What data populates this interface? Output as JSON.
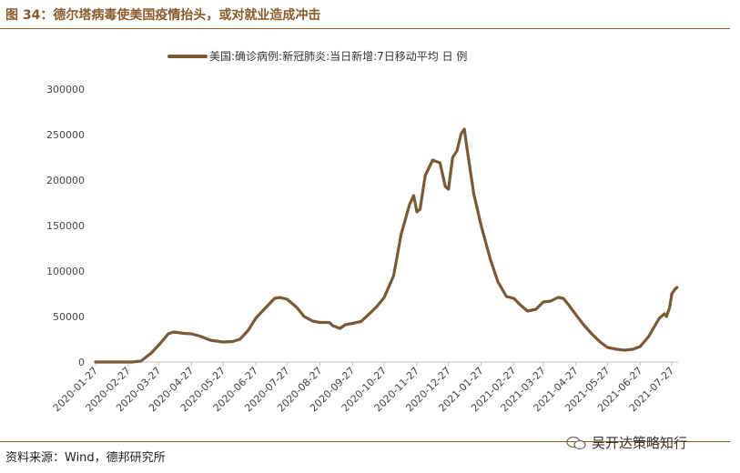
{
  "figure": {
    "title": "图 34：德尔塔病毒使美国疫情抬头，或对就业造成冲击",
    "source": "资料来源：Wind，德邦研究所",
    "watermark": "吴开达策略知行"
  },
  "colors": {
    "accent": "#8a5a2b",
    "series": "#7a5a34",
    "axis": "#bfbfbf"
  },
  "chart_data": {
    "type": "line",
    "xlabel": "",
    "ylabel": "",
    "ylim": [
      0,
      300000
    ],
    "yticks": [
      0,
      50000,
      100000,
      150000,
      200000,
      250000,
      300000
    ],
    "xticks": [
      "2020-01-27",
      "2020-02-27",
      "2020-03-27",
      "2020-04-27",
      "2020-05-27",
      "2020-06-27",
      "2020-07-27",
      "2020-08-27",
      "2020-09-27",
      "2020-10-27",
      "2020-11-27",
      "2020-12-27",
      "2021-01-27",
      "2021-02-27",
      "2021-03-27",
      "2021-04-27",
      "2021-05-27",
      "2021-06-27",
      "2021-07-27"
    ],
    "xlim": [
      "2020-01-27",
      "2021-08-02"
    ],
    "grid": false,
    "legend_position": "top",
    "series": [
      {
        "name": "美国:确诊病例:新冠肺炎:当日新增:7日移动平均  日  例",
        "x": [
          "2020-01-27",
          "2020-03-01",
          "2020-03-10",
          "2020-03-20",
          "2020-03-28",
          "2020-04-05",
          "2020-04-10",
          "2020-04-20",
          "2020-04-27",
          "2020-05-05",
          "2020-05-15",
          "2020-05-27",
          "2020-06-05",
          "2020-06-12",
          "2020-06-20",
          "2020-06-27",
          "2020-07-05",
          "2020-07-15",
          "2020-07-20",
          "2020-07-27",
          "2020-08-05",
          "2020-08-12",
          "2020-08-20",
          "2020-08-27",
          "2020-09-05",
          "2020-09-08",
          "2020-09-15",
          "2020-09-20",
          "2020-09-27",
          "2020-10-05",
          "2020-10-12",
          "2020-10-20",
          "2020-10-27",
          "2020-11-05",
          "2020-11-12",
          "2020-11-20",
          "2020-11-24",
          "2020-11-27",
          "2020-11-30",
          "2020-12-05",
          "2020-12-12",
          "2020-12-19",
          "2020-12-24",
          "2020-12-27",
          "2020-12-31",
          "2021-01-04",
          "2021-01-08",
          "2021-01-11",
          "2021-01-14",
          "2021-01-20",
          "2021-01-27",
          "2021-02-05",
          "2021-02-12",
          "2021-02-20",
          "2021-02-27",
          "2021-03-05",
          "2021-03-12",
          "2021-03-20",
          "2021-03-27",
          "2021-04-03",
          "2021-04-10",
          "2021-04-15",
          "2021-04-20",
          "2021-04-27",
          "2021-05-05",
          "2021-05-12",
          "2021-05-20",
          "2021-05-27",
          "2021-06-05",
          "2021-06-12",
          "2021-06-20",
          "2021-06-27",
          "2021-07-05",
          "2021-07-10",
          "2021-07-15",
          "2021-07-20",
          "2021-07-22",
          "2021-07-25",
          "2021-07-27",
          "2021-07-30",
          "2021-08-01"
        ],
        "values": [
          0,
          0,
          1000,
          10000,
          20000,
          31000,
          33000,
          31500,
          31000,
          28500,
          24000,
          22000,
          22500,
          25000,
          35000,
          48000,
          58000,
          70000,
          71000,
          69000,
          60000,
          50000,
          45000,
          43500,
          43500,
          40000,
          37000,
          41000,
          42500,
          44500,
          52000,
          61000,
          71000,
          95000,
          140000,
          173000,
          183000,
          165000,
          168000,
          205000,
          222000,
          219000,
          193000,
          190000,
          225000,
          232000,
          251000,
          256000,
          232000,
          185000,
          150000,
          112000,
          88000,
          72000,
          70000,
          63000,
          56000,
          58000,
          66000,
          67000,
          71000,
          70000,
          63000,
          52000,
          40000,
          31000,
          22000,
          16000,
          14000,
          13000,
          14000,
          17000,
          28000,
          38000,
          48000,
          53000,
          50000,
          60000,
          75000,
          80000,
          82000
        ]
      }
    ]
  }
}
